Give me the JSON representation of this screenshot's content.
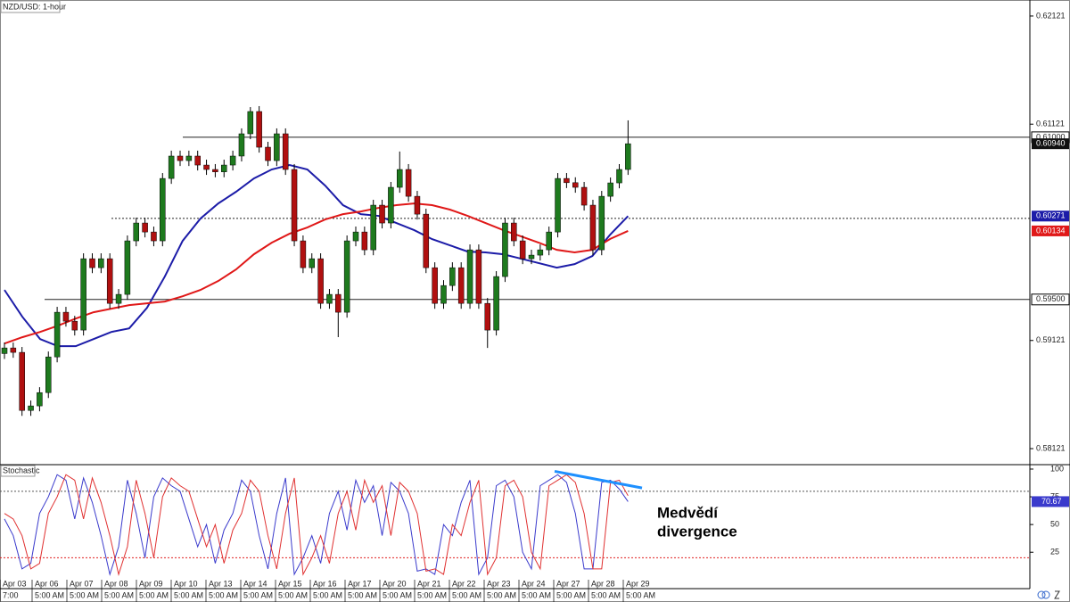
{
  "chart_data": [
    {
      "type": "candlestick",
      "title": "NZD/USD: 1-hour",
      "ylim": [
        0.57981,
        0.62269
      ],
      "yticks": [
        0.62121,
        0.61121,
        0.59121,
        0.58121
      ],
      "up_color": "#1e7a1e",
      "down_color": "#b01010",
      "candles": [
        [
          0.59,
          0.59102,
          0.5895,
          0.59052
        ],
        [
          0.59052,
          0.59102,
          0.58961,
          0.59011
        ],
        [
          0.59011,
          0.59061,
          0.58424,
          0.58474
        ],
        [
          0.58474,
          0.58566,
          0.58424,
          0.58516
        ],
        [
          0.58516,
          0.58689,
          0.58466,
          0.58639
        ],
        [
          0.58639,
          0.59019,
          0.58589,
          0.58969
        ],
        [
          0.58969,
          0.59432,
          0.58919,
          0.59382
        ],
        [
          0.59382,
          0.59432,
          0.59249,
          0.59299
        ],
        [
          0.59299,
          0.59349,
          0.59167,
          0.59217
        ],
        [
          0.59217,
          0.59927,
          0.59167,
          0.59877
        ],
        [
          0.59877,
          0.59927,
          0.59744,
          0.59794
        ],
        [
          0.59794,
          0.59927,
          0.59744,
          0.59877
        ],
        [
          0.59877,
          0.59927,
          0.59414,
          0.59464
        ],
        [
          0.59464,
          0.59597,
          0.59414,
          0.59547
        ],
        [
          0.59547,
          0.60092,
          0.59497,
          0.60042
        ],
        [
          0.60042,
          0.60257,
          0.59992,
          0.60207
        ],
        [
          0.60207,
          0.60257,
          0.60074,
          0.60124
        ],
        [
          0.60124,
          0.60174,
          0.59992,
          0.60042
        ],
        [
          0.60042,
          0.60669,
          0.59992,
          0.60619
        ],
        [
          0.60619,
          0.60876,
          0.60569,
          0.60826
        ],
        [
          0.60826,
          0.60876,
          0.60734,
          0.60784
        ],
        [
          0.60784,
          0.60876,
          0.60734,
          0.60826
        ],
        [
          0.60826,
          0.60876,
          0.60693,
          0.60743
        ],
        [
          0.60743,
          0.60793,
          0.60652,
          0.60702
        ],
        [
          0.60702,
          0.60752,
          0.6063,
          0.6068
        ],
        [
          0.6068,
          0.60793,
          0.6063,
          0.60743
        ],
        [
          0.60743,
          0.60876,
          0.60693,
          0.60826
        ],
        [
          0.60826,
          0.61082,
          0.60776,
          0.61032
        ],
        [
          0.61032,
          0.61279,
          0.60982,
          0.61238
        ],
        [
          0.61238,
          0.61288,
          0.60858,
          0.60908
        ],
        [
          0.60908,
          0.60958,
          0.60734,
          0.60784
        ],
        [
          0.60784,
          0.61082,
          0.60734,
          0.61032
        ],
        [
          0.61032,
          0.61082,
          0.60652,
          0.60702
        ],
        [
          0.60702,
          0.60752,
          0.59992,
          0.60042
        ],
        [
          0.60042,
          0.60092,
          0.59744,
          0.59794
        ],
        [
          0.59794,
          0.59927,
          0.59744,
          0.59877
        ],
        [
          0.59877,
          0.59927,
          0.59414,
          0.59464
        ],
        [
          0.59464,
          0.59597,
          0.59414,
          0.59547
        ],
        [
          0.59547,
          0.59597,
          0.59152,
          0.59382
        ],
        [
          0.59382,
          0.60092,
          0.59332,
          0.60042
        ],
        [
          0.60042,
          0.60174,
          0.59992,
          0.60124
        ],
        [
          0.60124,
          0.60174,
          0.59909,
          0.59959
        ],
        [
          0.59959,
          0.60422,
          0.59909,
          0.60372
        ],
        [
          0.60372,
          0.60422,
          0.60157,
          0.60207
        ],
        [
          0.60207,
          0.60587,
          0.60157,
          0.60537
        ],
        [
          0.60537,
          0.60868,
          0.60487,
          0.60702
        ],
        [
          0.60702,
          0.60752,
          0.60404,
          0.60454
        ],
        [
          0.60454,
          0.60504,
          0.60239,
          0.60289
        ],
        [
          0.60289,
          0.60339,
          0.59744,
          0.59794
        ],
        [
          0.59794,
          0.59844,
          0.59414,
          0.59464
        ],
        [
          0.59464,
          0.59679,
          0.59414,
          0.59629
        ],
        [
          0.59629,
          0.59844,
          0.59579,
          0.59794
        ],
        [
          0.59794,
          0.59844,
          0.59414,
          0.59464
        ],
        [
          0.59464,
          0.60009,
          0.59414,
          0.59959
        ],
        [
          0.59959,
          0.60009,
          0.59414,
          0.59464
        ],
        [
          0.59464,
          0.59514,
          0.59052,
          0.59217
        ],
        [
          0.59217,
          0.59762,
          0.59167,
          0.59712
        ],
        [
          0.59712,
          0.60257,
          0.59662,
          0.60207
        ],
        [
          0.60207,
          0.60257,
          0.59992,
          0.60042
        ],
        [
          0.60042,
          0.60092,
          0.59827,
          0.59877
        ],
        [
          0.59877,
          0.5996,
          0.59827,
          0.5991
        ],
        [
          0.5991,
          0.60009,
          0.5986,
          0.59959
        ],
        [
          0.59959,
          0.60174,
          0.59909,
          0.60124
        ],
        [
          0.60124,
          0.60669,
          0.60074,
          0.60619
        ],
        [
          0.60619,
          0.60669,
          0.6053,
          0.6058
        ],
        [
          0.6058,
          0.6063,
          0.60487,
          0.60537
        ],
        [
          0.60537,
          0.60587,
          0.60322,
          0.60372
        ],
        [
          0.60372,
          0.60422,
          0.59909,
          0.59959
        ],
        [
          0.59959,
          0.60504,
          0.59909,
          0.60454
        ],
        [
          0.60454,
          0.60628,
          0.60404,
          0.60578
        ],
        [
          0.60578,
          0.60752,
          0.60528,
          0.60702
        ],
        [
          0.60702,
          0.61156,
          0.60652,
          0.6094
        ]
      ],
      "last": {
        "value": 0.6094,
        "label": "0.60940"
      },
      "moving_averages": [
        {
          "color": "#1c1ca8",
          "values": [
            0.59588,
            0.59341,
            0.59134,
            0.59068,
            0.59068,
            0.59134,
            0.592,
            0.59233,
            0.59423,
            0.59712,
            0.60042,
            0.60248,
            0.60388,
            0.60496,
            0.60619,
            0.60702,
            0.60743,
            0.60702,
            0.60553,
            0.60372,
            0.60289,
            0.60273,
            0.60207,
            0.60141,
            0.60058,
            0.60001,
            0.59943,
            0.59935,
            0.59918,
            0.59877,
            0.59836,
            0.59794,
            0.59827,
            0.59902,
            0.601,
            0.60271
          ],
          "price_label": {
            "value": 0.60271,
            "label": "0.60271"
          }
        },
        {
          "color": "#e01818",
          "values": [
            0.59093,
            0.59151,
            0.592,
            0.59258,
            0.59324,
            0.59382,
            0.59415,
            0.59448,
            0.59464,
            0.59481,
            0.5953,
            0.59588,
            0.59671,
            0.59778,
            0.59918,
            0.60025,
            0.60108,
            0.60166,
            0.6024,
            0.60289,
            0.60314,
            0.60347,
            0.60372,
            0.60388,
            0.60372,
            0.60331,
            0.60273,
            0.60207,
            0.60141,
            0.60083,
            0.60025,
            0.59959,
            0.59935,
            0.59959,
            0.6006,
            0.60134
          ],
          "price_label": {
            "value": 0.60134,
            "label": "0.60134"
          }
        }
      ],
      "levels": [
        {
          "value": 0.61,
          "label": "0.61000",
          "style": "solid"
        },
        {
          "value": 0.595,
          "label": "0.59500",
          "style": "solid"
        },
        {
          "value": 0.6025,
          "style": "dotted"
        }
      ]
    },
    {
      "type": "stochastic",
      "title": "Stochastic",
      "ylim": [
        -7,
        104
      ],
      "yticks": [
        100,
        75,
        50,
        25
      ],
      "levels": [
        {
          "value": 80,
          "color": "#555555"
        },
        {
          "value": 20,
          "color": "#e02020"
        }
      ],
      "series": [
        {
          "color": "#3a3acc",
          "values": [
            55,
            40,
            10,
            15,
            60,
            75,
            95,
            90,
            55,
            92,
            70,
            40,
            5,
            30,
            90,
            60,
            20,
            75,
            92,
            85,
            80,
            55,
            30,
            50,
            15,
            45,
            60,
            90,
            80,
            40,
            10,
            60,
            92,
            5,
            20,
            40,
            15,
            60,
            80,
            45,
            90,
            70,
            85,
            40,
            88,
            80,
            60,
            8,
            10,
            5,
            50,
            40,
            70,
            90,
            5,
            20,
            85,
            90,
            75,
            25,
            10,
            85,
            90,
            95,
            88,
            60,
            10,
            10,
            88,
            90,
            82,
            70.67
          ],
          "price_label": {
            "value": 70.67,
            "label": "70.67"
          }
        },
        {
          "color": "#e03030",
          "values": [
            60,
            55,
            40,
            10,
            15,
            60,
            75,
            95,
            90,
            55,
            92,
            70,
            40,
            5,
            30,
            90,
            60,
            20,
            75,
            92,
            85,
            80,
            55,
            30,
            50,
            15,
            45,
            60,
            90,
            80,
            40,
            10,
            60,
            92,
            5,
            20,
            40,
            15,
            60,
            80,
            45,
            90,
            70,
            85,
            40,
            88,
            80,
            60,
            8,
            10,
            5,
            50,
            40,
            70,
            90,
            5,
            20,
            85,
            90,
            75,
            25,
            10,
            85,
            90,
            95,
            88,
            60,
            10,
            10,
            88,
            90,
            76
          ]
        }
      ],
      "trend_line": {
        "color": "#1e90ff",
        "values": [
          98,
          83
        ]
      },
      "annotation": [
        "Medvědí",
        "divergence"
      ]
    }
  ],
  "time_axis": {
    "dates": [
      "Apr 03",
      "Apr 06",
      "Apr 07",
      "Apr 08",
      "Apr 09",
      "Apr 10",
      "Apr 13",
      "Apr 14",
      "Apr 15",
      "Apr 16",
      "Apr 17",
      "Apr 20",
      "Apr 21",
      "Apr 22",
      "Apr 23",
      "Apr 24",
      "Apr 27",
      "Apr 28",
      "Apr 29"
    ],
    "times": [
      "7:00",
      "5:00 AM",
      "5:00 AM",
      "5:00 AM",
      "5:00 AM",
      "5:00 AM",
      "5:00 AM",
      "5:00 AM",
      "5:00 AM",
      "5:00 AM",
      "5:00 AM",
      "5:00 AM",
      "5:00 AM",
      "5:00 AM",
      "5:00 AM",
      "5:00 AM",
      "5:00 AM",
      "5:00 AM",
      "5:00 AM"
    ]
  }
}
